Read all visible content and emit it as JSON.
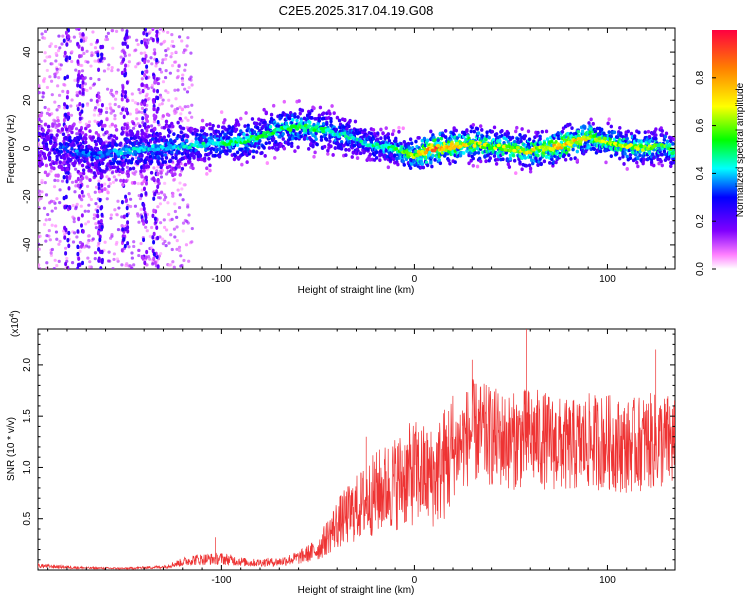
{
  "title": "C2E5.2025.317.04.19.G08",
  "chart_data": [
    {
      "type": "heatmap",
      "name": "spectrogram",
      "xlabel": "Height of straight line (km)",
      "ylabel": "Frequency (Hz)",
      "xlim": [
        -195,
        135
      ],
      "ylim": [
        -50,
        50
      ],
      "xticks": [
        -100,
        0,
        100
      ],
      "yticks": [
        -40,
        -20,
        0,
        20,
        40
      ],
      "colorbar": {
        "label": "Normalized spectral amplitude",
        "range": [
          0,
          1
        ],
        "ticks": [
          0.0,
          0.2,
          0.4,
          0.6,
          0.8
        ],
        "tick_labels": [
          "0.0",
          "0.2",
          "0.4",
          "0.6",
          "0.8"
        ]
      },
      "ridge_x": [
        -195,
        -180,
        -165,
        -150,
        -135,
        -120,
        -105,
        -90,
        -80,
        -70,
        -60,
        -50,
        -40,
        -30,
        -20,
        -10,
        0,
        10,
        20,
        30,
        40,
        50,
        60,
        70,
        80,
        90,
        100,
        110,
        120,
        130,
        135
      ],
      "ridge_freq": [
        2,
        0,
        -3,
        -1,
        0,
        1,
        2,
        3,
        5,
        8,
        9,
        8,
        6,
        4,
        1,
        0,
        -3,
        0,
        1,
        2,
        1,
        0,
        -1,
        0,
        2,
        5,
        3,
        1,
        0,
        1,
        -2
      ],
      "ridge_amp": [
        0.3,
        0.35,
        0.35,
        0.4,
        0.4,
        0.42,
        0.45,
        0.48,
        0.5,
        0.5,
        0.52,
        0.5,
        0.45,
        0.42,
        0.45,
        0.5,
        0.6,
        0.85,
        0.7,
        0.65,
        0.6,
        0.62,
        0.65,
        0.7,
        0.75,
        0.65,
        0.6,
        0.6,
        0.58,
        0.55,
        0.5
      ]
    },
    {
      "type": "line",
      "name": "snr",
      "xlabel": "Height of straight line (km)",
      "ylabel": "SNR (10 * v/v)",
      "y_multiplier": "(x10",
      "y_exponent": "4",
      "y_multiplier_close": ")",
      "xlim": [
        -195,
        135
      ],
      "ylim": [
        0,
        23500
      ],
      "xticks": [
        -100,
        0,
        100
      ],
      "yticks": [
        5000,
        10000,
        15000,
        20000
      ],
      "ytick_labels": [
        "0.5",
        "1.0",
        "1.5",
        "2.0"
      ],
      "color": "#ee3333",
      "x": [
        -195,
        -170,
        -150,
        -130,
        -115,
        -100,
        -85,
        -70,
        -60,
        -50,
        -40,
        -30,
        -20,
        -10,
        0,
        10,
        20,
        30,
        40,
        50,
        60,
        70,
        80,
        90,
        100,
        110,
        120,
        135
      ],
      "y": [
        400,
        200,
        150,
        300,
        1000,
        1100,
        700,
        800,
        1200,
        2000,
        4500,
        6000,
        7500,
        8500,
        9500,
        9000,
        11500,
        13500,
        13000,
        12500,
        13000,
        12500,
        12000,
        12500,
        12500,
        12000,
        12500,
        12500
      ],
      "peaks": [
        {
          "x": -103,
          "y": 3200
        },
        {
          "x": -25,
          "y": 13000
        },
        {
          "x": 30,
          "y": 20500
        },
        {
          "x": 58,
          "y": 23500
        },
        {
          "x": 125,
          "y": 21500
        }
      ]
    }
  ]
}
